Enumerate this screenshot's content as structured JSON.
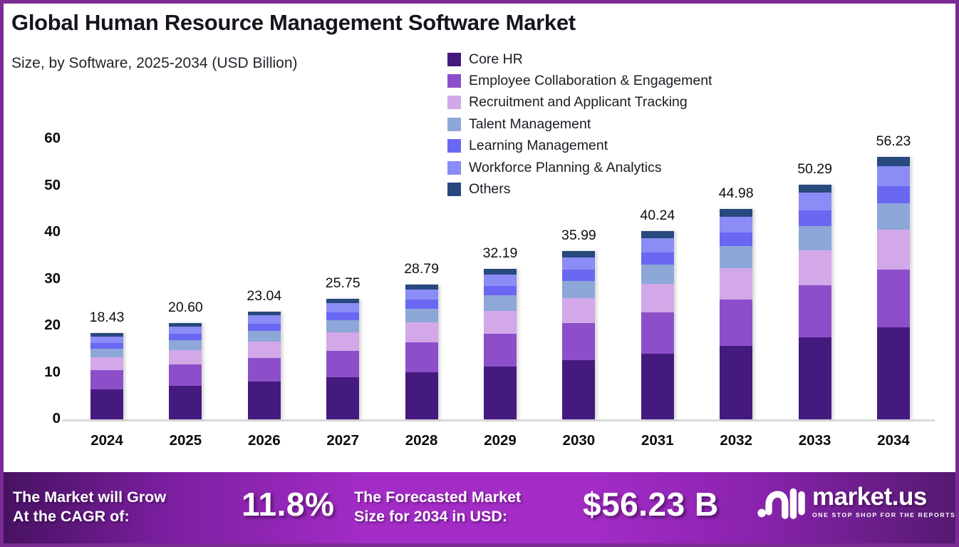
{
  "header": {
    "title": "Global Human Resource Management Software Market",
    "subtitle": "Size, by Software, 2025-2034 (USD Billion)"
  },
  "colors": {
    "frame_border": "#7b2b94",
    "background": "#ffffff",
    "baseline": "#d9d9d9",
    "footer_gradient": [
      "#471262",
      "#a32cc6",
      "#551a71"
    ]
  },
  "chart_data": {
    "type": "bar",
    "stacked": true,
    "title": "Global Human Resource Management Software Market Size, by Software, 2025-2034 (USD Billion)",
    "xlabel": "",
    "ylabel": "",
    "ylim": [
      0,
      60
    ],
    "y_ticks": [
      60,
      50,
      40,
      30,
      20,
      10,
      0
    ],
    "grid": false,
    "legend_position": "top-right",
    "categories": [
      "2024",
      "2025",
      "2026",
      "2027",
      "2028",
      "2029",
      "2030",
      "2031",
      "2032",
      "2033",
      "2034"
    ],
    "bar_total_labels": [
      "18.43",
      "20.60",
      "23.04",
      "25.75",
      "28.79",
      "32.19",
      "35.99",
      "40.24",
      "44.98",
      "50.29",
      "56.23"
    ],
    "series": [
      {
        "name": "Core HR",
        "color": "#451a7e",
        "values": [
          6.45,
          7.21,
          8.06,
          9.01,
          10.08,
          11.27,
          12.6,
          14.08,
          15.74,
          17.6,
          19.68
        ]
      },
      {
        "name": "Employee Collaboration & Engagement",
        "color": "#8c4fc9",
        "values": [
          4.07,
          4.55,
          5.09,
          5.69,
          6.36,
          7.11,
          7.95,
          8.89,
          9.94,
          11.11,
          12.43
        ]
      },
      {
        "name": "Recruitment and Applicant Tracking",
        "color": "#d2a8e8",
        "values": [
          2.76,
          3.09,
          3.46,
          3.86,
          4.32,
          4.83,
          5.4,
          6.04,
          6.75,
          7.54,
          8.43
        ]
      },
      {
        "name": "Talent Management",
        "color": "#8ea7d9",
        "values": [
          1.9,
          2.12,
          2.37,
          2.65,
          2.97,
          3.32,
          3.71,
          4.14,
          4.63,
          5.18,
          5.79
        ]
      },
      {
        "name": "Learning Management",
        "color": "#6a68f2",
        "values": [
          1.2,
          1.34,
          1.5,
          1.67,
          1.87,
          2.09,
          2.34,
          2.62,
          2.92,
          3.27,
          3.66
        ]
      },
      {
        "name": "Workforce Planning & Analytics",
        "color": "#8b8cf6",
        "values": [
          1.4,
          1.57,
          1.75,
          1.96,
          2.19,
          2.45,
          2.74,
          3.06,
          3.42,
          3.82,
          4.27
        ]
      },
      {
        "name": "Others",
        "color": "#27497d",
        "values": [
          0.65,
          0.72,
          0.81,
          0.9,
          1.01,
          1.13,
          1.26,
          1.41,
          1.57,
          1.76,
          1.97
        ]
      }
    ]
  },
  "footer": {
    "cagr_label_line1": "The Market will Grow",
    "cagr_label_line2": "At the CAGR of:",
    "cagr_value": "11.8%",
    "forecast_label_line1": "The Forecasted Market",
    "forecast_label_line2": "Size for 2034 in USD:",
    "forecast_value": "$56.23 B",
    "brand": {
      "name": "market.us",
      "tagline": "ONE STOP SHOP FOR THE REPORTS"
    }
  }
}
